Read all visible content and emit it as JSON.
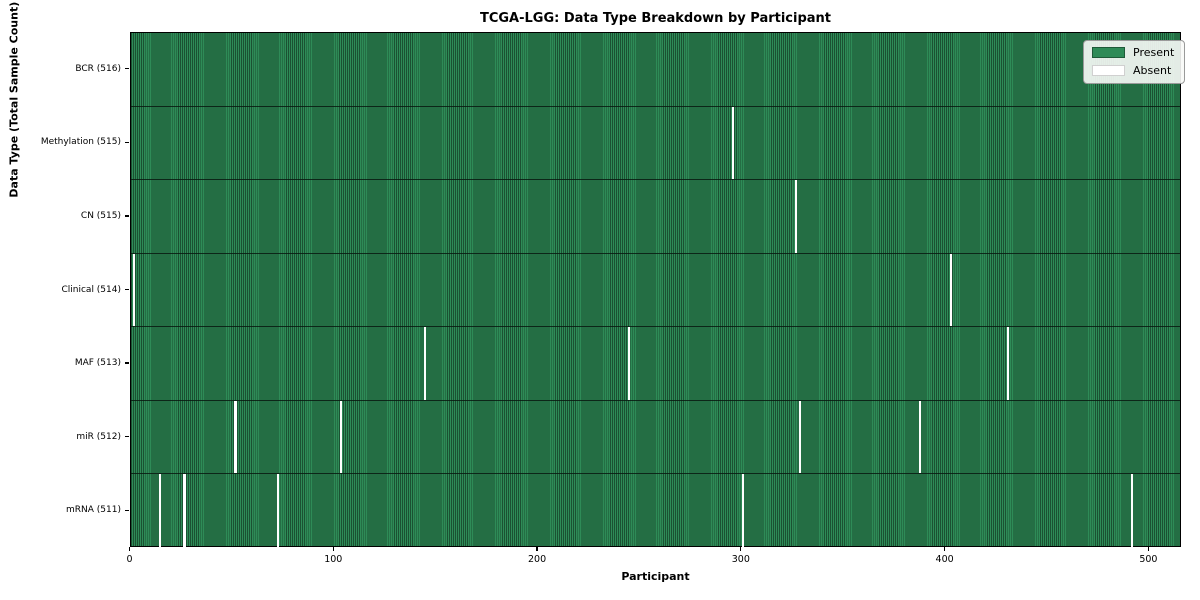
{
  "chart_data": {
    "type": "heatmap",
    "title": "TCGA-LGG: Data Type Breakdown by Participant",
    "xlabel": "Participant",
    "ylabel": "Data Type (Total Sample Count)",
    "x_ticks": [
      0,
      100,
      200,
      300,
      400,
      500
    ],
    "xlim": [
      0,
      516
    ],
    "n_participants": 516,
    "grid": false,
    "legend_position": "upper right",
    "colors": {
      "present": "#2e8b57",
      "absent": "#ffffff"
    },
    "legend": [
      {
        "label": "Present",
        "color": "#2e8b57"
      },
      {
        "label": "Absent",
        "color": "#ffffff"
      }
    ],
    "rows": [
      {
        "data_type": "BCR",
        "label": "BCR (516)",
        "total_samples": 516,
        "absent_participants": []
      },
      {
        "data_type": "Methylation",
        "label": "Methylation (515)",
        "total_samples": 515,
        "absent_participants": [
          295
        ]
      },
      {
        "data_type": "CN",
        "label": "CN (515)",
        "total_samples": 515,
        "absent_participants": [
          326
        ]
      },
      {
        "data_type": "Clinical",
        "label": "Clinical (514)",
        "total_samples": 514,
        "absent_participants": [
          1,
          402
        ]
      },
      {
        "data_type": "MAF",
        "label": "MAF (513)",
        "total_samples": 513,
        "absent_participants": [
          144,
          244,
          430
        ]
      },
      {
        "data_type": "miR",
        "label": "miR (512)",
        "total_samples": 512,
        "absent_participants": [
          51,
          103,
          328,
          387
        ]
      },
      {
        "data_type": "mRNA",
        "label": "mRNA (511)",
        "total_samples": 511,
        "absent_participants": [
          14,
          26,
          72,
          300,
          491
        ]
      }
    ]
  }
}
